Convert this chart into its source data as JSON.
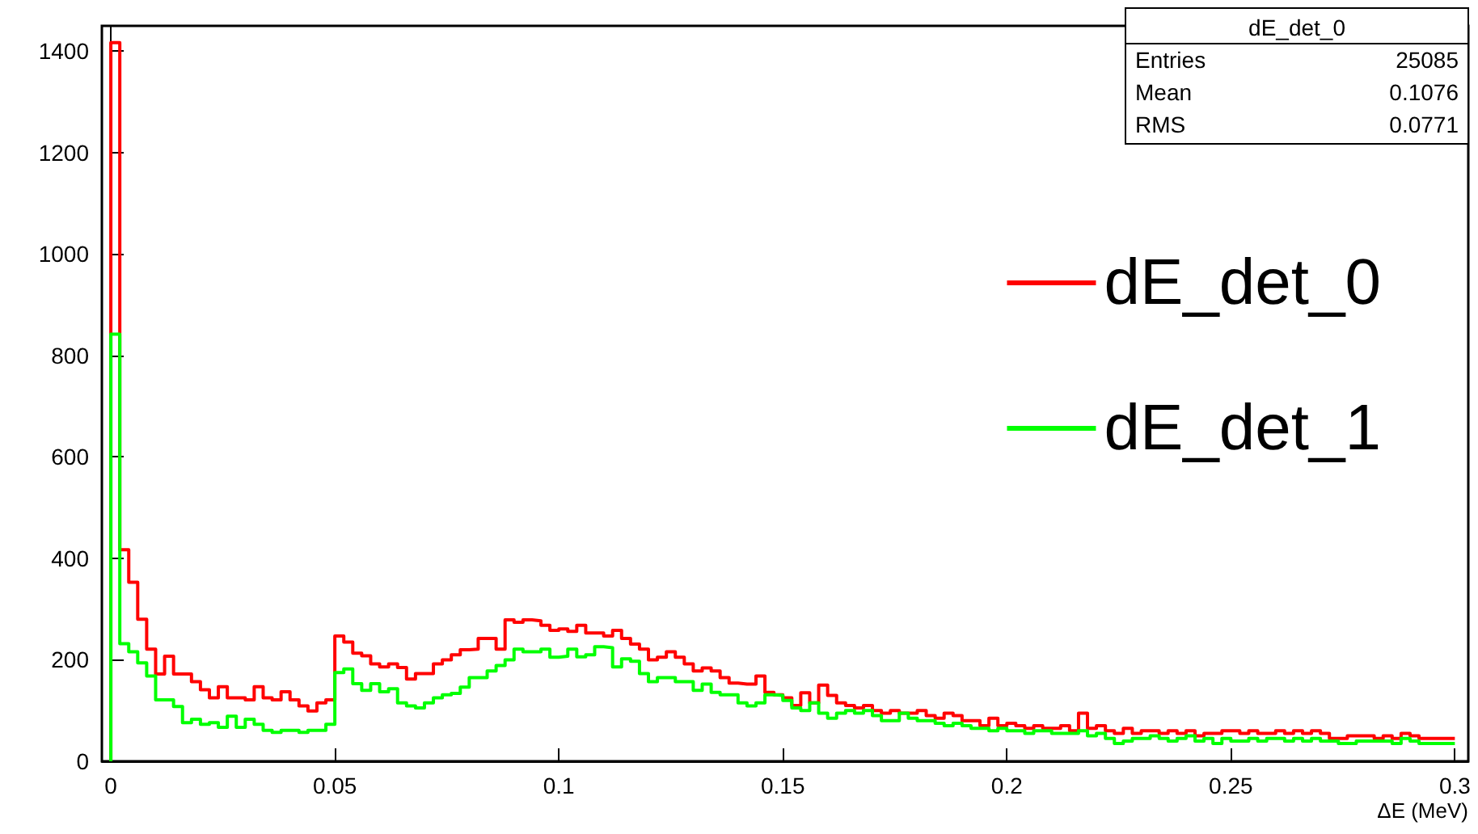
{
  "chart_data": {
    "type": "histogram",
    "bins": [
      0,
      0.002,
      0.004,
      0.006,
      0.008,
      0.01,
      0.012,
      0.014,
      0.016,
      0.018,
      0.02,
      0.022,
      0.024,
      0.026,
      0.028,
      0.03,
      0.032,
      0.034,
      0.036,
      0.038,
      0.04,
      0.042,
      0.044,
      0.046,
      0.048,
      0.05,
      0.052,
      0.054,
      0.056,
      0.058,
      0.06,
      0.062,
      0.064,
      0.066,
      0.068,
      0.07,
      0.072,
      0.074,
      0.076,
      0.078,
      0.08,
      0.082,
      0.084,
      0.086,
      0.088,
      0.09,
      0.092,
      0.094,
      0.096,
      0.098,
      0.1,
      0.102,
      0.104,
      0.106,
      0.108,
      0.11,
      0.112,
      0.114,
      0.116,
      0.118,
      0.12,
      0.122,
      0.124,
      0.126,
      0.128,
      0.13,
      0.132,
      0.134,
      0.136,
      0.138,
      0.14,
      0.142,
      0.144,
      0.146,
      0.148,
      0.15,
      0.152,
      0.154,
      0.156,
      0.158,
      0.16,
      0.162,
      0.164,
      0.166,
      0.168,
      0.17,
      0.172,
      0.174,
      0.176,
      0.178,
      0.18,
      0.182,
      0.184,
      0.186,
      0.188,
      0.19,
      0.192,
      0.194,
      0.196,
      0.198,
      0.2,
      0.202,
      0.204,
      0.206,
      0.208,
      0.21,
      0.212,
      0.214,
      0.216,
      0.218,
      0.22,
      0.222,
      0.224,
      0.226,
      0.228,
      0.23,
      0.232,
      0.234,
      0.236,
      0.238,
      0.24,
      0.242,
      0.244,
      0.246,
      0.248,
      0.25,
      0.252,
      0.254,
      0.256,
      0.258,
      0.26,
      0.262,
      0.264,
      0.266,
      0.268,
      0.27,
      0.272,
      0.274,
      0.276,
      0.278,
      0.28,
      0.282,
      0.284,
      0.286,
      0.288,
      0.29,
      0.292,
      0.294,
      0.296,
      0.298,
      0.3
    ],
    "series": [
      {
        "name": "dE_det_0",
        "color": "#ff0000",
        "values": [
          1417,
          417,
          353,
          280,
          221,
          172,
          207,
          172,
          172,
          157,
          141,
          125,
          147,
          125,
          125,
          121,
          147,
          125,
          121,
          137,
          121,
          109,
          99,
          115,
          121,
          247,
          235,
          213,
          208,
          192,
          186,
          192,
          185,
          162,
          173,
          173,
          192,
          200,
          210,
          220,
          221,
          242,
          242,
          221,
          279,
          274,
          279,
          277,
          268,
          258,
          261,
          256,
          268,
          253,
          253,
          247,
          258,
          242,
          231,
          221,
          200,
          205,
          216,
          205,
          192,
          178,
          184,
          178,
          165,
          154,
          152,
          152,
          168,
          136,
          131,
          125,
          110,
          135,
          115,
          150,
          130,
          115,
          110,
          105,
          110,
          100,
          95,
          100,
          95,
          95,
          100,
          90,
          85,
          95,
          90,
          80,
          80,
          70,
          85,
          70,
          75,
          70,
          65,
          70,
          65,
          65,
          70,
          60,
          95,
          65,
          70,
          60,
          55,
          65,
          55,
          60,
          60,
          55,
          60,
          55,
          60,
          50,
          55,
          55,
          60,
          60,
          55,
          60,
          55,
          55,
          60,
          55,
          60,
          55,
          60,
          55,
          45,
          45,
          50,
          50,
          50,
          45,
          50,
          45,
          55,
          50,
          45,
          45,
          45,
          45
        ]
      },
      {
        "name": "dE_det_1",
        "color": "#00ff00",
        "values": [
          842,
          232,
          216,
          194,
          168,
          121,
          121,
          108,
          76,
          83,
          73,
          76,
          67,
          89,
          67,
          83,
          73,
          61,
          57,
          61,
          61,
          57,
          61,
          61,
          73,
          175,
          182,
          153,
          140,
          153,
          137,
          143,
          115,
          109,
          105,
          115,
          125,
          131,
          134,
          146,
          165,
          165,
          178,
          189,
          200,
          221,
          216,
          216,
          221,
          205,
          207,
          221,
          206,
          210,
          226,
          224,
          186,
          202,
          197,
          173,
          157,
          165,
          165,
          157,
          157,
          140,
          152,
          136,
          131,
          131,
          115,
          109,
          115,
          131,
          130,
          120,
          105,
          100,
          115,
          95,
          85,
          95,
          100,
          95,
          100,
          90,
          80,
          80,
          95,
          85,
          80,
          80,
          75,
          70,
          75,
          70,
          65,
          65,
          60,
          65,
          60,
          60,
          55,
          60,
          60,
          55,
          55,
          55,
          60,
          50,
          55,
          45,
          35,
          40,
          45,
          45,
          50,
          45,
          40,
          45,
          50,
          40,
          45,
          35,
          45,
          40,
          40,
          45,
          40,
          45,
          45,
          40,
          45,
          40,
          45,
          40,
          40,
          35,
          35,
          40,
          40,
          40,
          40,
          35,
          45,
          40,
          35,
          35,
          35,
          35
        ]
      }
    ],
    "xlabel": "ΔE (MeV)",
    "xlim": [
      -0.002,
      0.303
    ],
    "xticks": [
      0,
      0.05,
      0.1,
      0.15,
      0.2,
      0.25,
      0.3
    ],
    "ylim": [
      0,
      1450
    ],
    "yticks": [
      0,
      200,
      400,
      600,
      800,
      1000,
      1200,
      1400
    ],
    "legend": "right",
    "annotations": [
      "dE_det_0",
      "Entries 25085",
      "Mean 0.1076",
      "RMS 0.0771"
    ]
  }
}
